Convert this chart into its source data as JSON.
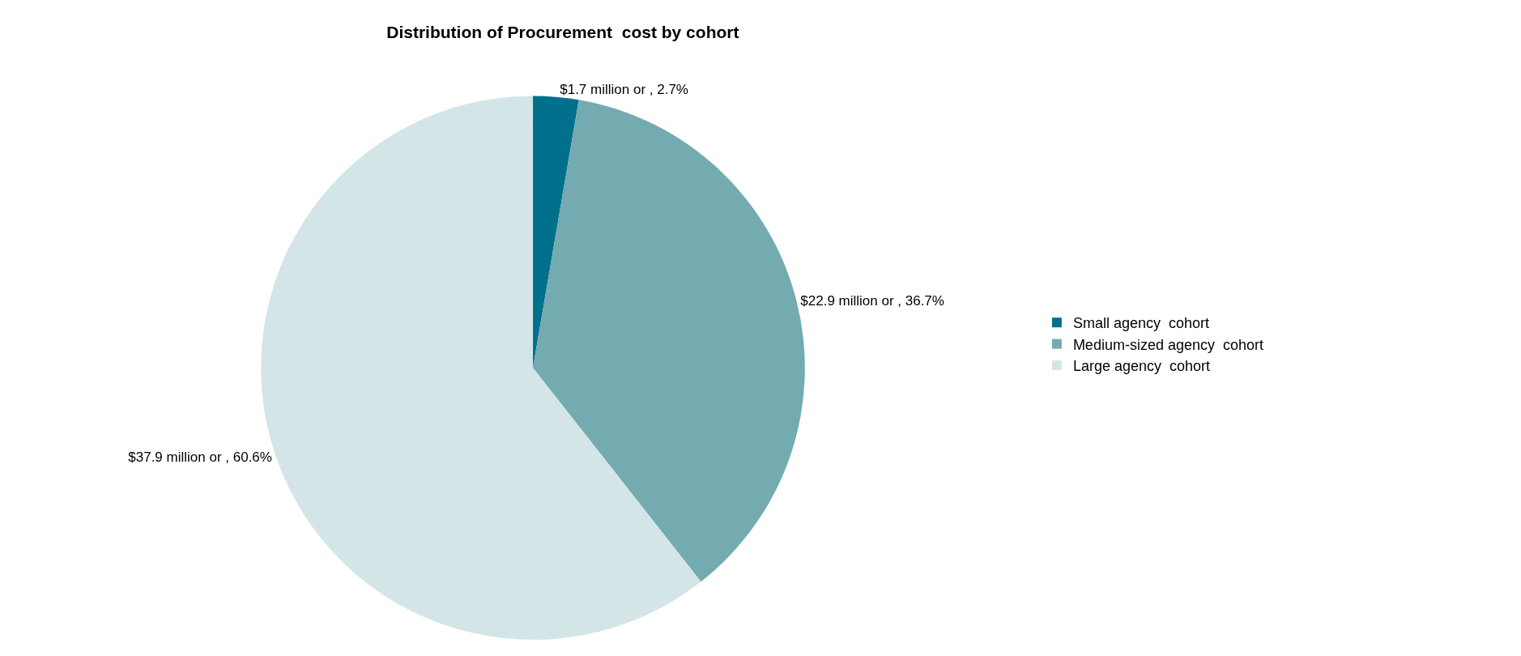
{
  "chart_data": {
    "type": "pie",
    "title": "Distribution of Procurement  cost by cohort",
    "categories": [
      "Small agency  cohort",
      "Medium-sized agency  cohort",
      "Large agency  cohort"
    ],
    "values": [
      2.7,
      36.7,
      60.6
    ],
    "value_labels": [
      "$1.7 million or , 2.7%",
      "$22.9 million or , 36.7%",
      "$37.9 million or , 60.6%"
    ],
    "colors": [
      "#00708c",
      "#74abb1",
      "#d3e5e7"
    ],
    "legend": "right"
  }
}
